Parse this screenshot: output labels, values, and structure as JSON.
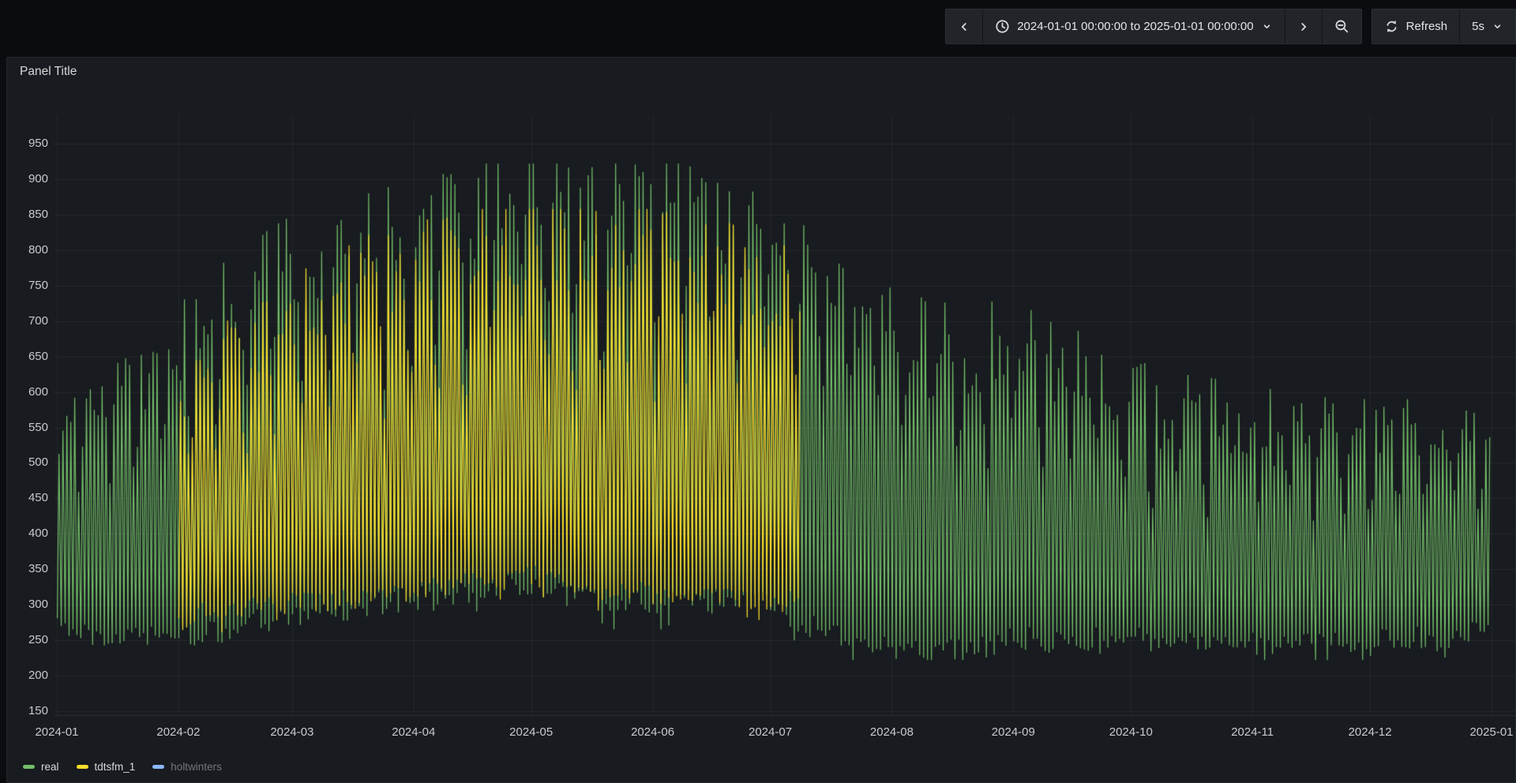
{
  "toolbar": {
    "time_range": "2024-01-01 00:00:00 to 2025-01-01 00:00:00",
    "refresh_label": "Refresh",
    "refresh_interval": "5s",
    "icons": [
      "chevron-left-icon",
      "clock-icon",
      "caret-down-icon",
      "chevron-right-icon",
      "zoom-out-icon",
      "refresh-sync-icon"
    ]
  },
  "panel": {
    "title": "Panel Title"
  },
  "legend": {
    "position": "bottom",
    "items": [
      {
        "label": "real",
        "color": "#73BF69",
        "enabled": true
      },
      {
        "label": "tdtsfm_1",
        "color": "#FADE2A",
        "enabled": true
      },
      {
        "label": "holtwinters",
        "color": "#8AB8FF",
        "enabled": false
      }
    ]
  },
  "colors": {
    "page_bg": "#0b0c0f",
    "panel_bg": "#181b1f",
    "grid": "rgba(204,204,220,0.07)",
    "axis_line": "rgba(204,204,220,0.14)",
    "tick_text": "#c8c9ce"
  },
  "chart_data": {
    "type": "line",
    "title": "Panel Title",
    "xlabel": "",
    "ylabel": "",
    "x_range": [
      "2024-01-01 00:00:00",
      "2025-01-01 00:00:00"
    ],
    "ylim": [
      145,
      990
    ],
    "y_ticks": [
      150,
      200,
      250,
      300,
      350,
      400,
      450,
      500,
      550,
      600,
      650,
      700,
      750,
      800,
      850,
      900,
      950
    ],
    "x_tick_labels": [
      "2024-01",
      "2024-02",
      "2024-03",
      "2024-04",
      "2024-05",
      "2024-06",
      "2024-07",
      "2024-08",
      "2024-09",
      "2024-10",
      "2024-11",
      "2024-12",
      "2025-01"
    ],
    "month_start_days": [
      0,
      31,
      60,
      91,
      121,
      152,
      182,
      213,
      244,
      274,
      305,
      335,
      366
    ],
    "grid": true,
    "legend_position": "bottom",
    "oscillation": "daily (two samples per day: morning low, midday high), weekly dip on weekends (Jan 1 2024 = Monday)",
    "series": [
      {
        "name": "real",
        "color": "#73BF69",
        "start_day": 0,
        "end_day": 366,
        "seed": 1337,
        "value_cap": 922,
        "value_floor": 222,
        "noise": 36,
        "weekend_factor": 0.55,
        "weekday_factor": 0.82,
        "factor_jitter": 0.3,
        "envelope_day_lo_hi": [
          [
            0,
            270,
            560
          ],
          [
            10,
            260,
            610
          ],
          [
            20,
            255,
            640
          ],
          [
            31,
            255,
            690
          ],
          [
            40,
            265,
            740
          ],
          [
            50,
            275,
            780
          ],
          [
            60,
            285,
            810
          ],
          [
            75,
            295,
            845
          ],
          [
            91,
            310,
            860
          ],
          [
            105,
            320,
            875
          ],
          [
            121,
            330,
            910
          ],
          [
            130,
            310,
            880
          ],
          [
            140,
            300,
            895
          ],
          [
            152,
            300,
            910
          ],
          [
            160,
            305,
            880
          ],
          [
            170,
            310,
            860
          ],
          [
            182,
            300,
            830
          ],
          [
            190,
            275,
            795
          ],
          [
            200,
            255,
            735
          ],
          [
            213,
            240,
            705
          ],
          [
            222,
            232,
            690
          ],
          [
            232,
            238,
            680
          ],
          [
            244,
            250,
            695
          ],
          [
            252,
            252,
            670
          ],
          [
            262,
            250,
            640
          ],
          [
            274,
            250,
            605
          ],
          [
            288,
            248,
            585
          ],
          [
            305,
            245,
            570
          ],
          [
            320,
            248,
            562
          ],
          [
            335,
            250,
            578
          ],
          [
            348,
            252,
            568
          ],
          [
            358,
            248,
            575
          ],
          [
            366,
            290,
            560
          ]
        ]
      },
      {
        "name": "tdtsfm_1",
        "color": "#FADE2A",
        "start_day": 31,
        "end_day": 190,
        "seed": 99,
        "value_cap": 858,
        "value_floor": 235,
        "noise": 34,
        "weekend_factor": 0.55,
        "weekday_factor": 0.82,
        "factor_jitter": 0.3,
        "envelope_day_lo_hi": [
          [
            31,
            280,
            610
          ],
          [
            40,
            290,
            650
          ],
          [
            50,
            295,
            690
          ],
          [
            60,
            300,
            730
          ],
          [
            75,
            310,
            775
          ],
          [
            91,
            320,
            800
          ],
          [
            105,
            330,
            815
          ],
          [
            121,
            340,
            845
          ],
          [
            135,
            325,
            820
          ],
          [
            152,
            315,
            835
          ],
          [
            165,
            320,
            810
          ],
          [
            175,
            312,
            790
          ],
          [
            190,
            300,
            755
          ]
        ]
      },
      {
        "name": "holtwinters",
        "color": "#8AB8FF",
        "hidden": true,
        "envelope_day_lo_hi": []
      }
    ]
  }
}
